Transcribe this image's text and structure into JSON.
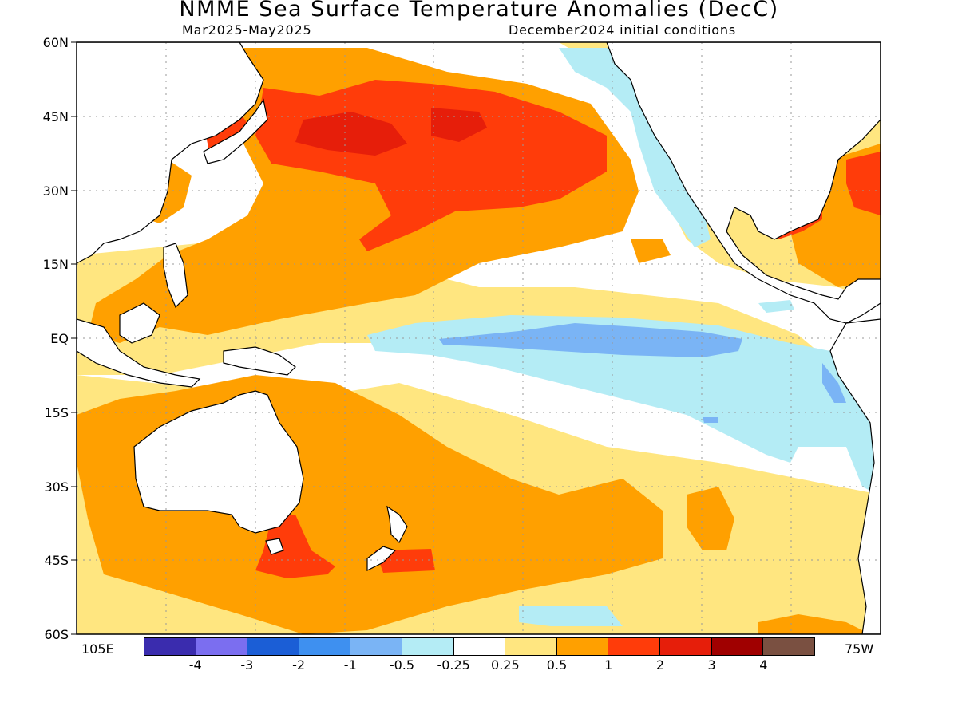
{
  "title": "NMME Sea Surface Temperature Anomalies (DecC)",
  "subtitle_left": "Mar2025-May2025",
  "subtitle_right": "December2024 initial conditions",
  "lat_labels": [
    "60N",
    "45N",
    "30N",
    "15N",
    "EQ",
    "15S",
    "30S",
    "45S",
    "60S"
  ],
  "lon_labels": [
    "105E",
    "75W"
  ],
  "colorbar": {
    "colors": [
      "#3a2cae",
      "#7b6ef0",
      "#1b5ed6",
      "#3e90f0",
      "#7ab4f5",
      "#b4ecf5",
      "#ffffff",
      "#ffe680",
      "#ffa000",
      "#ff3c0a",
      "#e61e0a",
      "#a00000",
      "#7a5041"
    ],
    "labels": [
      "-4",
      "-3",
      "-2",
      "-1",
      "-0.5",
      "-0.25",
      "0.25",
      "0.5",
      "1",
      "2",
      "3",
      "4"
    ]
  },
  "colors": {
    "land": "#ffffff",
    "coast": "#000000",
    "grid": "#999999"
  }
}
